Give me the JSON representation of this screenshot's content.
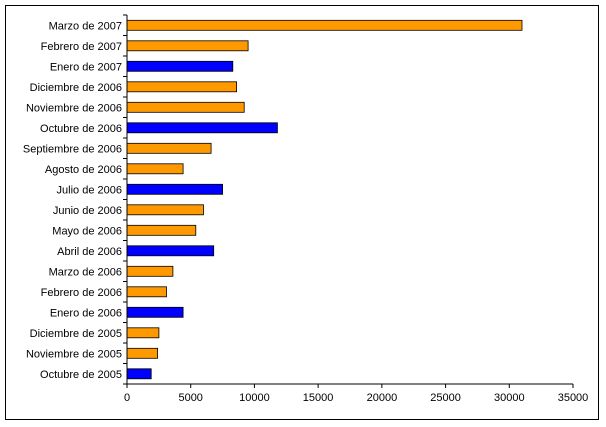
{
  "chart_data": {
    "type": "bar",
    "orientation": "horizontal",
    "categories": [
      "Marzo de 2007",
      "Febrero de 2007",
      "Enero de 2007",
      "Diciembre de 2006",
      "Noviembre de 2006",
      "Octubre de 2006",
      "Septiembre de 2006",
      "Agosto de 2006",
      "Julio de 2006",
      "Junio de 2006",
      "Mayo de 2006",
      "Abril de 2006",
      "Marzo de 2006",
      "Febrero de 2006",
      "Enero de 2006",
      "Diciembre de 2005",
      "Noviembre de 2005",
      "Octubre de 2005"
    ],
    "values": [
      31000,
      9500,
      8300,
      8600,
      9200,
      11800,
      6600,
      4400,
      7500,
      6000,
      5400,
      6800,
      3600,
      3100,
      4400,
      2500,
      2400,
      1900
    ],
    "bar_colors": [
      "#FF9900",
      "#FF9900",
      "#0000FF",
      "#FF9900",
      "#FF9900",
      "#0000FF",
      "#FF9900",
      "#FF9900",
      "#0000FF",
      "#FF9900",
      "#FF9900",
      "#0000FF",
      "#FF9900",
      "#FF9900",
      "#0000FF",
      "#FF9900",
      "#FF9900",
      "#0000FF"
    ],
    "xlim": [
      0,
      35000
    ],
    "xticks": [
      0,
      5000,
      10000,
      15000,
      20000,
      25000,
      30000,
      35000
    ],
    "xtick_labels": [
      "0",
      "5000",
      "10000",
      "15000",
      "20000",
      "25000",
      "30000",
      "35000"
    ],
    "grid": false,
    "legend": false,
    "title": "",
    "xlabel": "",
    "ylabel": ""
  }
}
